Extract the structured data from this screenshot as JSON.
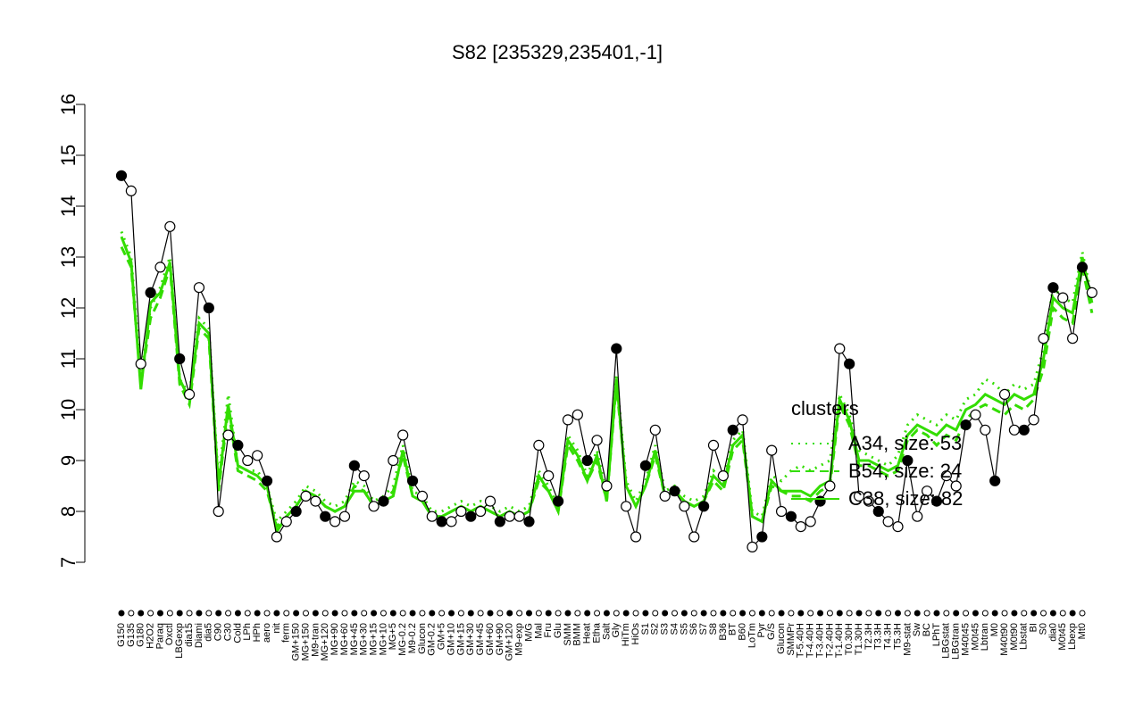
{
  "chart_data": {
    "type": "line",
    "title": "S82 [235329,235401,-1]",
    "xlabel": "",
    "ylabel": "",
    "ylim": [
      7,
      16
    ],
    "yticks": [
      7,
      8,
      9,
      10,
      11,
      12,
      13,
      14,
      15,
      16
    ],
    "grid": false,
    "legend": {
      "title": "clusters",
      "placement": "right",
      "entries": [
        "A34, size: 53",
        "B54, size: 24",
        "C38, size: 82"
      ]
    },
    "xtick_labels": [
      "G150",
      "G135",
      "G180",
      "H2O2",
      "Paraq",
      "Oxctl",
      "LBGexp",
      "dia15",
      "Diami",
      "dia5",
      "C90",
      "C30",
      "Cold",
      "LPh",
      "HPh",
      "aero",
      "nit",
      "ferm",
      "GM+150",
      "MG+150",
      "M9-tran",
      "MG+120",
      "MG+90",
      "MG+60",
      "MG+45",
      "MG+30",
      "MG+15",
      "MG+10",
      "MG+5",
      "MG-0.2",
      "M9-0.2",
      "Glucon",
      "GM-0.2",
      "GM+5",
      "GM+10",
      "GM+15",
      "GM+30",
      "GM+45",
      "GM+60",
      "GM+90",
      "GM+120",
      "M9-exp",
      "M/G",
      "Mal",
      "Fru",
      "Glu",
      "SMM",
      "BMM",
      "Heat",
      "Etha",
      "Salt",
      "Gly",
      "HiTm",
      "HiOs",
      "S1",
      "S2",
      "S3",
      "S4",
      "S5",
      "S6",
      "S7",
      "S8",
      "B36",
      "BT",
      "B60",
      "LoTm",
      "Pyr",
      "G/S",
      "Glucon",
      "SMMPr",
      "T-5.40H",
      "T-4.40H",
      "T-3.40H",
      "T-2.40H",
      "T-1.40H",
      "T0.30H",
      "T1.30H",
      "T2.3H",
      "T3.3H",
      "T4.3H",
      "T5.3H",
      "M9-stat",
      "Sw",
      "BC",
      "LPhT",
      "LBGstat",
      "LBGtran",
      "M40t45",
      "M0t45",
      "Lbtran",
      "M0",
      "M40t90",
      "M0t90",
      "Lbstat",
      "BI",
      "S0",
      "dia0",
      "M0t45",
      "Lbexp",
      "Mt0"
    ],
    "series": [
      {
        "name": "expression",
        "values": [
          14.6,
          14.3,
          10.9,
          12.3,
          12.8,
          13.6,
          11.0,
          10.3,
          12.4,
          12.0,
          8.0,
          9.5,
          9.3,
          9.0,
          9.1,
          8.6,
          7.5,
          7.8,
          8.0,
          8.3,
          8.2,
          7.9,
          7.8,
          7.9,
          8.9,
          8.7,
          8.1,
          8.2,
          9.0,
          9.5,
          8.6,
          8.3,
          7.9,
          7.8,
          7.8,
          8.0,
          7.9,
          8.0,
          8.2,
          7.8,
          7.9,
          7.9,
          7.8,
          9.3,
          8.7,
          8.2,
          9.8,
          9.9,
          9.0,
          9.4,
          8.5,
          11.2,
          8.1,
          7.5,
          8.9,
          9.6,
          8.3,
          8.4,
          8.1,
          7.5,
          8.1,
          9.3,
          8.7,
          9.6,
          9.8,
          7.3,
          7.5,
          9.2,
          8.0,
          7.9,
          7.7,
          7.8,
          8.2,
          8.5,
          11.2,
          10.9,
          8.3,
          8.2,
          8.0,
          7.8,
          7.7,
          9.0,
          7.9,
          8.4,
          8.2,
          8.7,
          8.5,
          9.7,
          9.9,
          9.6,
          8.6,
          10.3,
          9.6,
          9.6,
          9.8,
          11.4,
          12.4,
          12.2,
          11.4,
          12.8,
          12.3
        ]
      },
      {
        "name": "A34, size: 53",
        "values": [
          13.5,
          13.0,
          10.6,
          12.0,
          12.4,
          13.0,
          10.6,
          10.3,
          11.8,
          11.6,
          8.6,
          10.3,
          8.9,
          8.8,
          8.8,
          8.5,
          7.8,
          8.0,
          8.2,
          8.5,
          8.4,
          8.2,
          8.1,
          8.2,
          8.6,
          8.5,
          8.2,
          8.3,
          8.5,
          9.3,
          8.4,
          8.3,
          8.0,
          8.0,
          8.1,
          8.2,
          8.1,
          8.2,
          8.1,
          8.0,
          8.1,
          8.0,
          8.1,
          8.8,
          8.5,
          8.1,
          9.5,
          9.2,
          8.7,
          9.2,
          8.3,
          10.7,
          8.6,
          8.2,
          8.6,
          9.3,
          8.4,
          8.5,
          8.3,
          8.2,
          8.3,
          8.8,
          8.6,
          9.4,
          9.6,
          8.0,
          7.9,
          8.7,
          8.6,
          8.8,
          8.9,
          8.8,
          8.9,
          9.0,
          10.3,
          9.9,
          9.2,
          9.1,
          9.0,
          8.9,
          9.1,
          9.7,
          9.9,
          9.8,
          9.7,
          9.9,
          9.8,
          10.2,
          10.3,
          10.6,
          10.5,
          10.3,
          10.5,
          10.4,
          10.5,
          11.2,
          12.4,
          12.2,
          12.1,
          13.1,
          12.2
        ]
      },
      {
        "name": "B54, size: 24",
        "values": [
          13.2,
          12.8,
          10.5,
          11.8,
          12.2,
          12.8,
          10.5,
          10.1,
          11.6,
          11.4,
          8.4,
          10.0,
          8.8,
          8.7,
          8.6,
          8.4,
          7.7,
          7.9,
          8.1,
          8.4,
          8.3,
          8.1,
          8.0,
          8.1,
          8.5,
          8.4,
          8.1,
          8.2,
          8.4,
          9.1,
          8.3,
          8.2,
          7.9,
          7.9,
          8.0,
          8.1,
          8.0,
          8.1,
          8.0,
          7.9,
          8.0,
          7.9,
          8.0,
          8.6,
          8.4,
          8.0,
          9.3,
          9.0,
          8.6,
          9.0,
          8.2,
          10.5,
          8.5,
          8.1,
          8.5,
          9.1,
          8.3,
          8.4,
          8.2,
          8.1,
          8.2,
          8.6,
          8.4,
          9.2,
          9.4,
          7.9,
          7.8,
          8.5,
          8.4,
          8.3,
          8.3,
          8.2,
          8.4,
          8.5,
          10.1,
          9.7,
          8.9,
          8.9,
          8.8,
          8.7,
          8.8,
          9.4,
          9.6,
          9.5,
          9.3,
          9.5,
          9.4,
          9.8,
          10.0,
          10.1,
          10.0,
          9.9,
          10.1,
          10.0,
          10.2,
          10.8,
          12.0,
          11.8,
          11.7,
          12.8,
          11.9
        ]
      },
      {
        "name": "C38, size: 82",
        "values": [
          13.4,
          12.9,
          10.4,
          12.1,
          12.3,
          12.9,
          10.6,
          10.2,
          11.7,
          11.5,
          8.5,
          10.1,
          8.9,
          8.8,
          8.7,
          8.5,
          7.6,
          7.9,
          8.1,
          8.4,
          8.3,
          8.1,
          8.0,
          8.1,
          8.4,
          8.4,
          8.1,
          8.2,
          8.3,
          9.2,
          8.3,
          8.2,
          7.9,
          7.9,
          8.0,
          8.1,
          8.0,
          8.1,
          8.0,
          7.9,
          8.0,
          7.9,
          8.0,
          8.7,
          8.4,
          8.0,
          9.4,
          9.1,
          8.6,
          9.1,
          8.2,
          10.6,
          8.5,
          8.1,
          8.5,
          9.2,
          8.3,
          8.4,
          8.2,
          8.1,
          8.2,
          8.7,
          8.5,
          9.3,
          9.5,
          7.9,
          7.8,
          8.6,
          8.4,
          8.4,
          8.4,
          8.3,
          8.5,
          8.6,
          10.2,
          9.8,
          9.0,
          9.0,
          8.9,
          8.8,
          8.9,
          9.5,
          9.7,
          9.6,
          9.5,
          9.7,
          9.6,
          10.0,
          10.1,
          10.3,
          10.2,
          10.1,
          10.3,
          10.2,
          10.3,
          11.0,
          12.2,
          12.0,
          11.9,
          13.0,
          12.1
        ]
      }
    ],
    "colors": {
      "points_fill_a": "#ffffff",
      "points_fill_b": "#000000",
      "series_line": "#000000",
      "cluster_line": "#33dd00",
      "axis": "#000000"
    }
  }
}
